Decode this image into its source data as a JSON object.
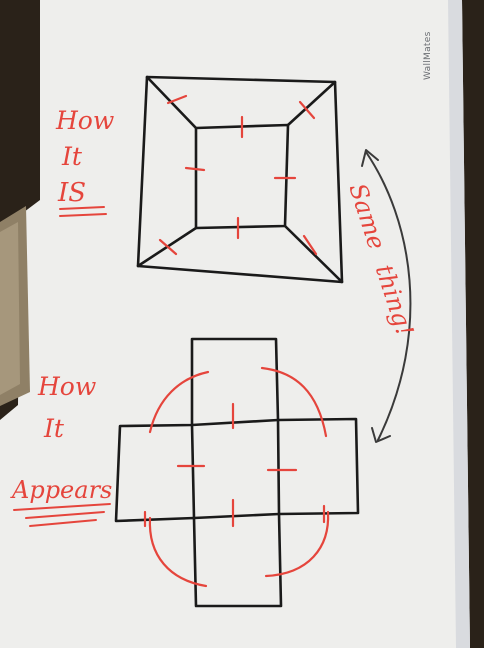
{
  "brand": {
    "text": "WallMates"
  },
  "labels": {
    "top": {
      "line1": "How",
      "line2": "It",
      "line3": "IS"
    },
    "bottom": {
      "line1": "How",
      "line2": "It",
      "line3": "Appears"
    },
    "side": {
      "line1": "Same",
      "line2": "thing!"
    }
  },
  "colors": {
    "ink": "#1a1a1a",
    "marker": "#e5453c",
    "board": "#eeeeec",
    "background": "#2a2219"
  }
}
